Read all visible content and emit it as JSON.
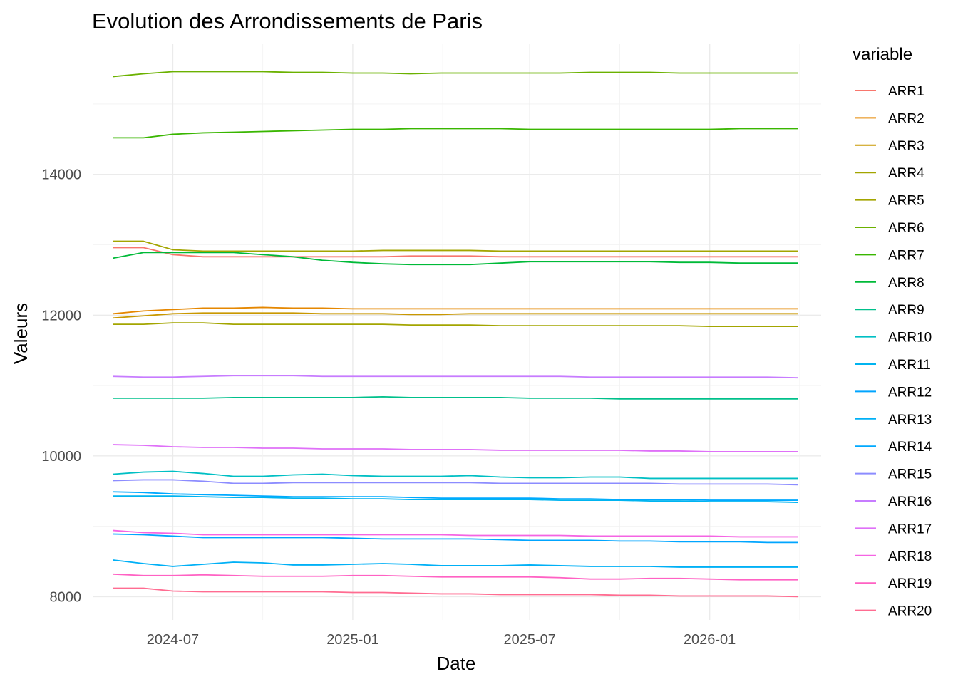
{
  "chart_data": {
    "type": "line",
    "title": "Evolution des Arrondissements de Paris",
    "xlabel": "Date",
    "ylabel": "Valeurs",
    "legend_title": "variable",
    "legend_position": "right",
    "grid": true,
    "x_ticks": [
      "2024-07",
      "2025-01",
      "2025-07",
      "2026-01"
    ],
    "y_ticks": [
      "8000",
      "10000",
      "12000",
      "14000"
    ],
    "xlim": [
      "2024-04-10",
      "2026-04-25"
    ],
    "ylim": [
      7670,
      15850
    ],
    "x": [
      "2024-05-01",
      "2024-06-01",
      "2024-07-01",
      "2024-08-01",
      "2024-09-01",
      "2024-10-01",
      "2024-11-01",
      "2024-12-01",
      "2025-01-01",
      "2025-02-01",
      "2025-03-01",
      "2025-04-01",
      "2025-05-01",
      "2025-06-01",
      "2025-07-01",
      "2025-08-01",
      "2025-09-01",
      "2025-10-01",
      "2025-11-01",
      "2025-12-01",
      "2026-01-01",
      "2026-02-01",
      "2026-03-01",
      "2026-04-01"
    ],
    "series": [
      {
        "name": "ARR1",
        "color": "#F8766D",
        "values": [
          12960,
          12960,
          12860,
          12830,
          12830,
          12830,
          12830,
          12830,
          12830,
          12830,
          12840,
          12840,
          12840,
          12830,
          12830,
          12830,
          12830,
          12830,
          12830,
          12830,
          12830,
          12830,
          12830,
          12830
        ]
      },
      {
        "name": "ARR2",
        "color": "#E58700",
        "values": [
          12020,
          12060,
          12080,
          12100,
          12100,
          12110,
          12100,
          12100,
          12090,
          12090,
          12090,
          12090,
          12090,
          12090,
          12090,
          12090,
          12090,
          12090,
          12090,
          12090,
          12090,
          12090,
          12090,
          12090
        ]
      },
      {
        "name": "ARR3",
        "color": "#C99800",
        "values": [
          11960,
          11990,
          12020,
          12030,
          12030,
          12030,
          12030,
          12020,
          12020,
          12020,
          12010,
          12010,
          12020,
          12020,
          12020,
          12020,
          12020,
          12020,
          12020,
          12020,
          12020,
          12020,
          12020,
          12020
        ]
      },
      {
        "name": "ARR4",
        "color": "#A3A500",
        "values": [
          13050,
          13050,
          12930,
          12910,
          12910,
          12910,
          12910,
          12910,
          12910,
          12920,
          12920,
          12920,
          12920,
          12910,
          12910,
          12910,
          12910,
          12910,
          12910,
          12910,
          12910,
          12910,
          12910,
          12910
        ]
      },
      {
        "name": "ARR5",
        "color": "#A3A500",
        "values": [
          11870,
          11870,
          11890,
          11890,
          11870,
          11870,
          11870,
          11870,
          11870,
          11870,
          11860,
          11860,
          11860,
          11850,
          11850,
          11850,
          11850,
          11850,
          11850,
          11850,
          11840,
          11840,
          11840,
          11840
        ]
      },
      {
        "name": "ARR6",
        "color": "#6BB100",
        "values": [
          15390,
          15430,
          15460,
          15460,
          15460,
          15460,
          15450,
          15450,
          15440,
          15440,
          15430,
          15440,
          15440,
          15440,
          15440,
          15440,
          15450,
          15450,
          15450,
          15440,
          15440,
          15440,
          15440,
          15440
        ]
      },
      {
        "name": "ARR7",
        "color": "#39B600",
        "values": [
          14520,
          14520,
          14570,
          14590,
          14600,
          14610,
          14620,
          14630,
          14640,
          14640,
          14650,
          14650,
          14650,
          14650,
          14640,
          14640,
          14640,
          14640,
          14640,
          14640,
          14640,
          14650,
          14650,
          14650
        ]
      },
      {
        "name": "ARR8",
        "color": "#00BA38",
        "values": [
          12810,
          12890,
          12890,
          12890,
          12890,
          12860,
          12830,
          12780,
          12750,
          12730,
          12720,
          12720,
          12720,
          12740,
          12760,
          12760,
          12760,
          12760,
          12760,
          12750,
          12750,
          12740,
          12740,
          12740
        ]
      },
      {
        "name": "ARR9",
        "color": "#00C08B",
        "values": [
          10820,
          10820,
          10820,
          10820,
          10830,
          10830,
          10830,
          10830,
          10830,
          10840,
          10830,
          10830,
          10830,
          10830,
          10820,
          10820,
          10820,
          10810,
          10810,
          10810,
          10810,
          10810,
          10810,
          10810
        ]
      },
      {
        "name": "ARR10",
        "color": "#00BFC4",
        "values": [
          9740,
          9770,
          9780,
          9750,
          9710,
          9710,
          9730,
          9740,
          9720,
          9710,
          9710,
          9710,
          9720,
          9700,
          9690,
          9690,
          9700,
          9700,
          9680,
          9680,
          9680,
          9680,
          9680,
          9680
        ]
      },
      {
        "name": "ARR11",
        "color": "#00B4F0",
        "values": [
          9430,
          9430,
          9430,
          9420,
          9410,
          9410,
          9400,
          9400,
          9390,
          9390,
          9380,
          9380,
          9380,
          9380,
          9380,
          9370,
          9370,
          9370,
          9360,
          9360,
          9350,
          9350,
          9350,
          9340
        ]
      },
      {
        "name": "ARR12",
        "color": "#00A5FF",
        "values": [
          8890,
          8880,
          8860,
          8840,
          8840,
          8840,
          8840,
          8840,
          8830,
          8820,
          8820,
          8820,
          8820,
          8810,
          8800,
          8800,
          8800,
          8790,
          8790,
          8780,
          8780,
          8780,
          8770,
          8770
        ]
      },
      {
        "name": "ARR13",
        "color": "#00B0F6",
        "values": [
          8520,
          8470,
          8430,
          8460,
          8490,
          8480,
          8450,
          8450,
          8460,
          8470,
          8460,
          8440,
          8440,
          8440,
          8450,
          8440,
          8430,
          8430,
          8430,
          8420,
          8420,
          8420,
          8420,
          8420
        ]
      },
      {
        "name": "ARR14",
        "color": "#00A9FF",
        "values": [
          9490,
          9480,
          9460,
          9450,
          9440,
          9430,
          9420,
          9420,
          9420,
          9420,
          9410,
          9400,
          9400,
          9400,
          9400,
          9390,
          9390,
          9380,
          9380,
          9380,
          9370,
          9370,
          9370,
          9370
        ]
      },
      {
        "name": "ARR15",
        "color": "#8C8CFF",
        "values": [
          9650,
          9660,
          9660,
          9640,
          9610,
          9610,
          9620,
          9620,
          9620,
          9620,
          9620,
          9620,
          9620,
          9610,
          9610,
          9610,
          9610,
          9610,
          9610,
          9600,
          9600,
          9600,
          9600,
          9590
        ]
      },
      {
        "name": "ARR16",
        "color": "#C77CFF",
        "values": [
          11130,
          11120,
          11120,
          11130,
          11140,
          11140,
          11140,
          11130,
          11130,
          11130,
          11130,
          11130,
          11130,
          11130,
          11130,
          11130,
          11120,
          11120,
          11120,
          11120,
          11120,
          11120,
          11120,
          11110
        ]
      },
      {
        "name": "ARR17",
        "color": "#DF70F8",
        "values": [
          10160,
          10150,
          10130,
          10120,
          10120,
          10110,
          10110,
          10100,
          10100,
          10100,
          10090,
          10090,
          10090,
          10080,
          10080,
          10080,
          10080,
          10080,
          10070,
          10070,
          10060,
          10060,
          10060,
          10060
        ]
      },
      {
        "name": "ARR18",
        "color": "#F564E3",
        "values": [
          8940,
          8910,
          8900,
          8880,
          8880,
          8880,
          8880,
          8880,
          8880,
          8880,
          8880,
          8880,
          8870,
          8870,
          8870,
          8870,
          8860,
          8860,
          8860,
          8860,
          8860,
          8850,
          8850,
          8850
        ]
      },
      {
        "name": "ARR19",
        "color": "#FF61C3",
        "values": [
          8320,
          8300,
          8300,
          8310,
          8300,
          8290,
          8290,
          8290,
          8300,
          8300,
          8290,
          8280,
          8280,
          8280,
          8280,
          8270,
          8250,
          8250,
          8260,
          8260,
          8250,
          8240,
          8240,
          8240
        ]
      },
      {
        "name": "ARR20",
        "color": "#FF6C91",
        "values": [
          8120,
          8120,
          8080,
          8070,
          8070,
          8070,
          8070,
          8070,
          8060,
          8060,
          8050,
          8040,
          8040,
          8030,
          8030,
          8030,
          8030,
          8020,
          8020,
          8010,
          8010,
          8010,
          8010,
          8000
        ]
      }
    ]
  }
}
